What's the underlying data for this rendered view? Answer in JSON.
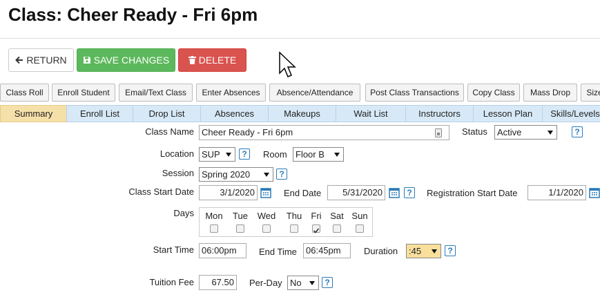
{
  "header": {
    "title": "Class: Cheer Ready - Fri 6pm"
  },
  "actions": [
    "RETURN",
    "SAVE CHANGES",
    "DELETE"
  ],
  "toolbar": [
    "Class Roll",
    "Enroll Student",
    "Email/Text Class",
    "Enter Absences",
    "Absence/Attendance",
    "Post Class Transactions",
    "Copy Class",
    "Mass Drop",
    "Size"
  ],
  "tabs": [
    "Summary",
    "Enroll List",
    "Drop List",
    "Absences",
    "Makeups",
    "Wait List",
    "Instructors",
    "Lesson Plan",
    "Skills/Levels"
  ],
  "help_icon": "?",
  "form": {
    "class_name": {
      "label": "Class Name",
      "value": "Cheer Ready  - Fri 6pm"
    },
    "status": {
      "label": "Status",
      "value": "Active"
    },
    "location": {
      "label": "Location",
      "value": "SUP"
    },
    "room": {
      "label": "Room",
      "value": "Floor B"
    },
    "session": {
      "label": "Session",
      "value": "Spring 2020"
    },
    "class_start_date": {
      "label": "Class Start Date",
      "value": "3/1/2020"
    },
    "end_date": {
      "label": "End Date",
      "value": "5/31/2020"
    },
    "registration_start_date": {
      "label": "Registration Start Date",
      "value": "1/1/2020"
    },
    "days": {
      "label": "Days",
      "names": [
        "Mon",
        "Tue",
        "Wed",
        "Thu",
        "Fri",
        "Sat",
        "Sun"
      ],
      "checked": [
        false,
        false,
        false,
        false,
        true,
        false,
        false
      ]
    },
    "start_time": {
      "label": "Start Time",
      "value": "06:00pm"
    },
    "end_time": {
      "label": "End Time",
      "value": "06:45pm"
    },
    "duration": {
      "label": "Duration",
      "value": ":45"
    },
    "tuition_fee": {
      "label": "Tuition Fee",
      "value": "67.50"
    },
    "per_day": {
      "label": "Per-Day",
      "value": "No"
    }
  }
}
